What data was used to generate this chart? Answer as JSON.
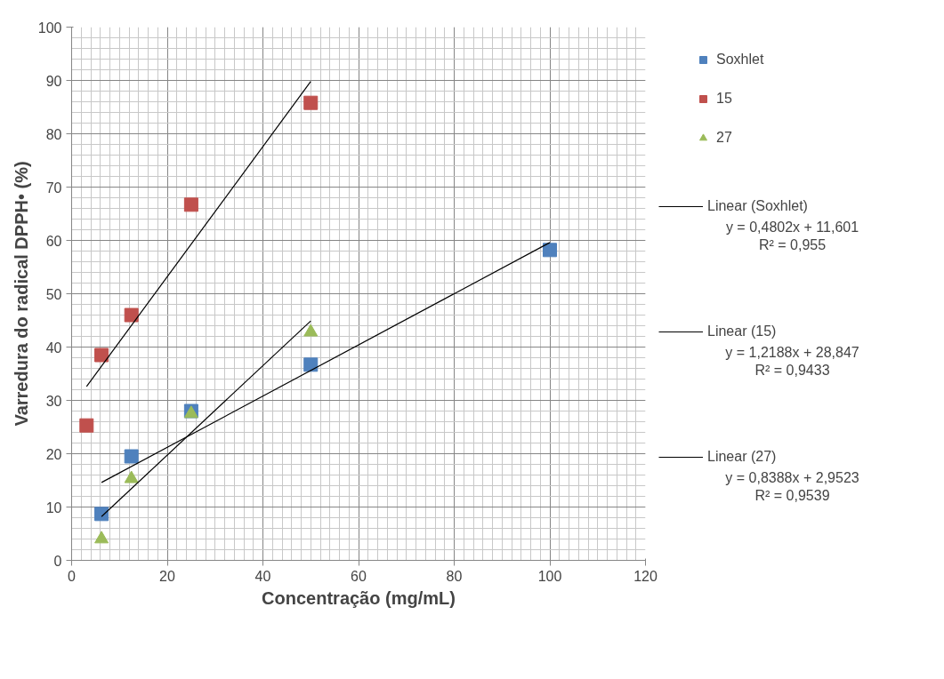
{
  "chart_data": {
    "type": "scatter",
    "xlabel": "Concentração (mg/mL)",
    "ylabel": "Varredura do radical DPPH• (%)",
    "xlim": [
      0,
      120
    ],
    "xticks": [
      0,
      20,
      40,
      60,
      80,
      100,
      120
    ],
    "ylim": [
      0,
      100
    ],
    "yticks": [
      0,
      10,
      20,
      30,
      40,
      50,
      60,
      70,
      80,
      90,
      100
    ],
    "grid": true,
    "legend": "right",
    "series": [
      {
        "name": "Soxhlet",
        "color": "#4f81bd",
        "marker": "square",
        "x": [
          6.25,
          12.5,
          25,
          50,
          100
        ],
        "values": [
          8.7,
          19.5,
          28,
          36.7,
          58.2
        ]
      },
      {
        "name": "15",
        "color": "#c0504d",
        "marker": "square",
        "x": [
          3.125,
          6.25,
          12.5,
          25,
          50
        ],
        "values": [
          25.3,
          38.5,
          46,
          66.7,
          85.8
        ]
      },
      {
        "name": "27",
        "color": "#9bbb59",
        "marker": "triangle",
        "x": [
          6.25,
          12.5,
          25,
          50
        ],
        "values": [
          4,
          15.3,
          27.5,
          42.8
        ]
      },
      {
        "name": "Linear (Soxhlet)",
        "type": "line",
        "color": "#000000",
        "x": [
          6.25,
          100
        ],
        "values": [
          14.6,
          59.6
        ]
      },
      {
        "name": "Linear (15)",
        "type": "line",
        "color": "#000000",
        "x": [
          3.125,
          50
        ],
        "values": [
          32.6,
          89.8
        ]
      },
      {
        "name": "Linear (27)",
        "type": "line",
        "color": "#000000",
        "x": [
          6.25,
          50
        ],
        "values": [
          8.2,
          44.9
        ]
      }
    ],
    "annotations": [
      "y = 0,4802x + 11,601\nR² = 0,955",
      "y = 1,2188x + 28,847\nR² = 0,9433",
      "y = 0,8388x + 2,9523\nR² = 0,9539"
    ]
  }
}
